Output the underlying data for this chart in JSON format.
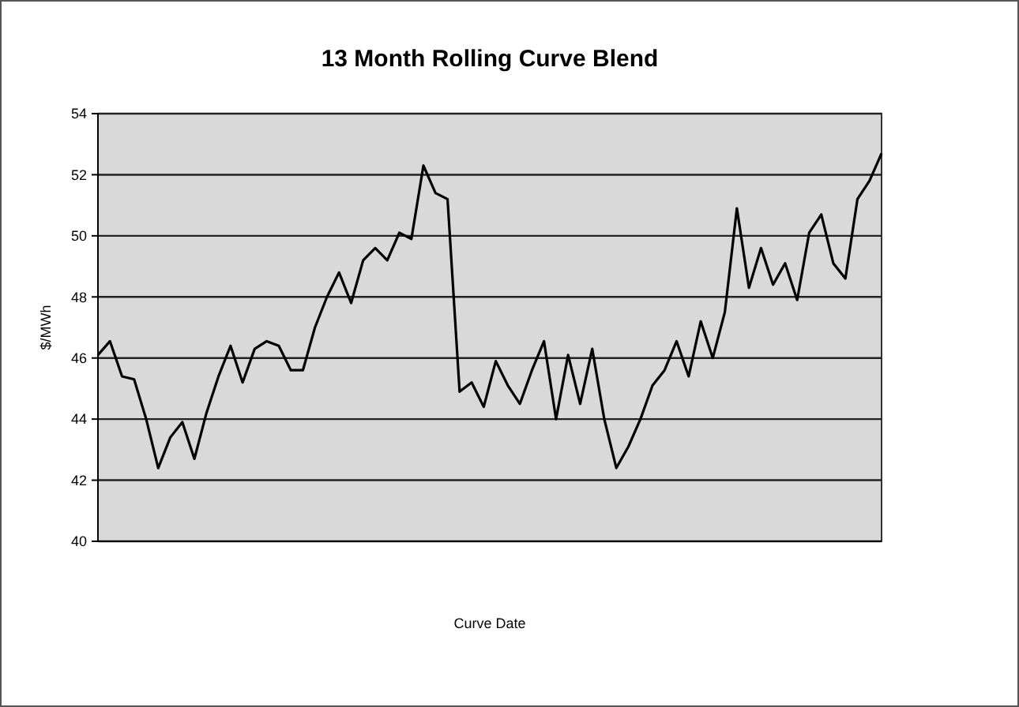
{
  "chart_data": {
    "type": "line",
    "title": "13 Month Rolling Curve Blend",
    "xlabel": "Curve Date",
    "ylabel": "$/MWh",
    "categories": [
      null,
      null,
      null,
      null,
      null,
      null,
      null,
      null,
      null,
      null,
      null,
      null,
      null,
      null,
      null,
      null,
      null,
      null,
      null,
      null,
      null,
      null,
      null,
      null,
      null,
      null,
      null,
      null,
      null,
      null,
      null,
      null,
      null,
      null,
      null,
      null,
      null,
      null,
      null,
      null,
      null,
      null,
      null,
      null,
      null,
      null,
      null,
      null,
      null,
      null,
      null,
      null,
      null,
      null,
      null,
      null,
      null,
      null,
      null,
      null,
      null,
      null,
      null,
      null,
      null,
      null
    ],
    "series": [
      {
        "color": "#000000",
        "values": [
          46.1,
          46.55,
          45.4,
          45.3,
          44.0,
          42.4,
          43.4,
          43.9,
          42.7,
          44.2,
          45.4,
          46.4,
          45.2,
          46.3,
          46.55,
          46.4,
          45.6,
          45.6,
          47.0,
          48.0,
          48.8,
          47.8,
          49.2,
          49.6,
          49.2,
          50.1,
          49.9,
          52.3,
          51.4,
          51.2,
          44.9,
          45.2,
          44.4,
          45.9,
          45.1,
          44.5,
          45.6,
          46.55,
          44.0,
          46.1,
          44.5,
          46.3,
          44.0,
          42.4,
          43.1,
          44.0,
          45.1,
          45.6,
          46.55,
          45.4,
          47.2,
          46.0,
          47.5,
          50.9,
          48.3,
          49.6,
          48.4,
          49.1,
          47.9,
          50.1,
          50.7,
          49.1,
          48.6,
          51.2,
          51.8,
          52.7
        ]
      }
    ],
    "ylim": [
      40,
      54
    ],
    "yticks": [
      40,
      42,
      44,
      46,
      48,
      50,
      52,
      54
    ],
    "grid": "y",
    "marker": "none",
    "line_style": "solid"
  }
}
